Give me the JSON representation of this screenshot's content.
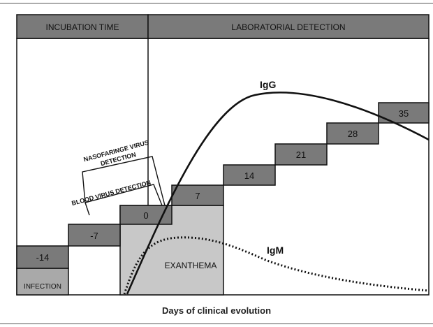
{
  "header": {
    "incubation_label": "INCUBATION TIME",
    "laboratorial_label": "LABORATORIAL DETECTION"
  },
  "steps": [
    {
      "label": "-14"
    },
    {
      "label": "-7"
    },
    {
      "label": "0"
    },
    {
      "label": "7"
    },
    {
      "label": "14"
    },
    {
      "label": "21"
    },
    {
      "label": "28"
    },
    {
      "label": "35"
    }
  ],
  "regions": {
    "infection_label": "INFECTION",
    "exanthema_label": "EXANTHEMA"
  },
  "detection": {
    "nasofaringe_line1": "NASOFARINGE VIRUS",
    "nasofaringe_line2": "DETECTION",
    "blood_label": "BLOOD VIRUS DETECTION"
  },
  "curves": {
    "igg_label": "IgG",
    "igm_label": "IgM"
  },
  "caption": "Days of clinical evolution",
  "colors": {
    "header_fill": "#7a7a7a",
    "step_fill": "#7a7a7a",
    "exanthema_fill": "#c8c8c8",
    "infection_fill": "#a9a9a9",
    "line": "#111111"
  }
}
